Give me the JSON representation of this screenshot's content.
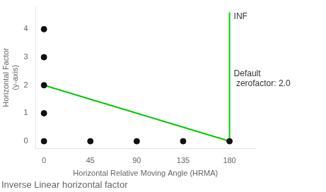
{
  "chart_data": {
    "type": "line",
    "title": "Inverse Linear horizontal factor",
    "x_label": "Horizontal Relative Moving Angle (HRMA)",
    "y_label": [
      "Horizontal Factor",
      "(y-axis)"
    ],
    "xlim": [
      -8,
      205
    ],
    "ylim": [
      -0.25,
      4.8
    ],
    "xticks": [
      0,
      45,
      90,
      135,
      180
    ],
    "yticks": [
      0,
      1,
      2,
      3,
      4
    ],
    "grid": false,
    "series": [
      {
        "type": "line",
        "color": "#00cc00",
        "x": [
          0,
          180
        ],
        "values": [
          2.0,
          0.0
        ]
      },
      {
        "type": "line",
        "color": "#00cc00",
        "x": [
          180,
          180
        ],
        "values": [
          0.0,
          4.6
        ]
      },
      {
        "type": "scatter",
        "color": "#111111",
        "x": [
          0,
          0,
          0,
          0,
          0,
          45,
          90,
          135,
          180
        ],
        "values": [
          0,
          1,
          2,
          3,
          4,
          0,
          0,
          0,
          0
        ]
      }
    ],
    "annotations": [
      "INF",
      "Default\n zerofactor: 2.0"
    ]
  }
}
